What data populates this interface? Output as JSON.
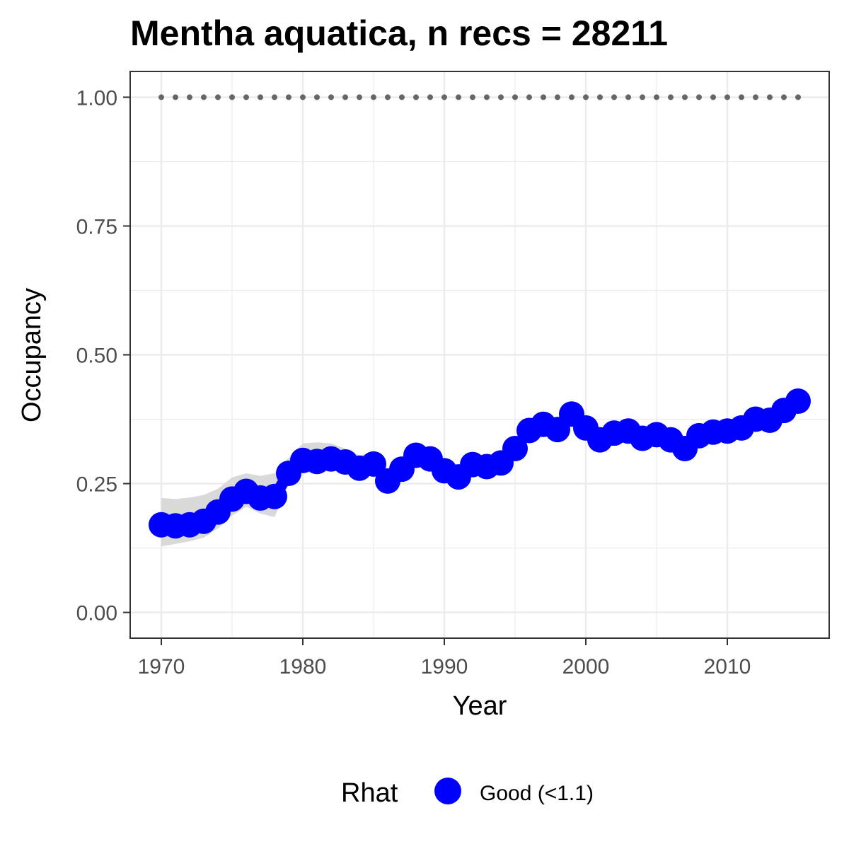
{
  "chart_data": {
    "type": "line",
    "title": "Mentha aquatica, n recs = 28211",
    "xlabel": "Year",
    "ylabel": "Occupancy",
    "xlim": [
      1967.8,
      2017.2
    ],
    "ylim": [
      -0.05,
      1.05
    ],
    "x_ticks": [
      1970,
      1980,
      1990,
      2000,
      2010
    ],
    "y_ticks": [
      0.0,
      0.25,
      0.5,
      0.75,
      1.0
    ],
    "x_tick_labels": [
      "1970",
      "1980",
      "1990",
      "2000",
      "2010"
    ],
    "y_tick_labels": [
      "0.00",
      "0.25",
      "0.50",
      "0.75",
      "1.00"
    ],
    "grid": true,
    "legend": {
      "position": "bottom",
      "title": "Rhat",
      "entries": [
        {
          "label": "Good (<1.1)",
          "color": "#0000ff"
        }
      ]
    },
    "colors": {
      "series": "#0000ff",
      "ribbon": "#d9d9d9",
      "reference": "#666666"
    },
    "x": [
      1970,
      1971,
      1972,
      1973,
      1974,
      1975,
      1976,
      1977,
      1978,
      1979,
      1980,
      1981,
      1982,
      1983,
      1984,
      1985,
      1986,
      1987,
      1988,
      1989,
      1990,
      1991,
      1992,
      1993,
      1994,
      1995,
      1996,
      1997,
      1998,
      1999,
      2000,
      2001,
      2002,
      2003,
      2004,
      2005,
      2006,
      2007,
      2008,
      2009,
      2010,
      2011,
      2012,
      2013,
      2014,
      2015
    ],
    "series": [
      {
        "values": [
          0.17,
          0.168,
          0.17,
          0.177,
          0.195,
          0.22,
          0.235,
          0.222,
          0.225,
          0.27,
          0.295,
          0.293,
          0.298,
          0.292,
          0.28,
          0.288,
          0.255,
          0.278,
          0.305,
          0.298,
          0.275,
          0.263,
          0.287,
          0.283,
          0.29,
          0.318,
          0.353,
          0.365,
          0.355,
          0.385,
          0.358,
          0.335,
          0.348,
          0.352,
          0.338,
          0.345,
          0.335,
          0.318,
          0.343,
          0.35,
          0.352,
          0.358,
          0.375,
          0.373,
          0.392,
          0.41
        ],
        "lower": [
          0.128,
          0.133,
          0.138,
          0.145,
          0.163,
          0.188,
          0.205,
          0.192,
          0.185,
          0.248,
          0.272,
          0.27,
          0.275,
          0.27,
          0.262,
          0.27,
          0.238,
          0.262,
          0.29,
          0.282,
          0.26,
          0.248,
          0.272,
          0.27,
          0.275,
          0.305,
          0.34,
          0.352,
          0.342,
          0.372,
          0.345,
          0.322,
          0.335,
          0.34,
          0.325,
          0.332,
          0.322,
          0.305,
          0.33,
          0.338,
          0.34,
          0.345,
          0.362,
          0.36,
          0.378,
          0.395
        ],
        "upper": [
          0.222,
          0.22,
          0.223,
          0.228,
          0.24,
          0.262,
          0.27,
          0.265,
          0.27,
          0.3,
          0.328,
          0.33,
          0.328,
          0.318,
          0.305,
          0.31,
          0.278,
          0.298,
          0.322,
          0.315,
          0.292,
          0.282,
          0.305,
          0.3,
          0.308,
          0.333,
          0.368,
          0.38,
          0.37,
          0.4,
          0.372,
          0.35,
          0.362,
          0.366,
          0.352,
          0.36,
          0.35,
          0.333,
          0.358,
          0.364,
          0.366,
          0.372,
          0.39,
          0.388,
          0.406,
          0.425
        ]
      }
    ],
    "reference_line": {
      "y": 1.0
    }
  }
}
